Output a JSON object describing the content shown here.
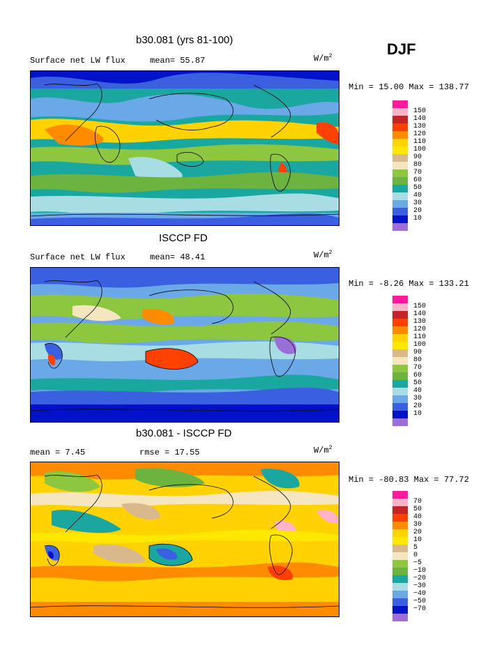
{
  "season": "DJF",
  "unit_text": "W/m",
  "unit_sup": "2",
  "panels": [
    {
      "title": "b30.081 (yrs 81-100)",
      "left_label": "Surface net LW flux",
      "mid_label": "mean=  55.87",
      "minmax": "Min =  15.00 Max = 138.77",
      "legend_labels": [
        "150",
        "140",
        "130",
        "120",
        "110",
        "100",
        "90",
        "80",
        "70",
        "60",
        "50",
        "40",
        "30",
        "20",
        "10"
      ],
      "style": "model"
    },
    {
      "title": "ISCCP FD",
      "left_label": "Surface net LW flux",
      "mid_label": "mean=  48.41",
      "minmax": "Min =  -8.26 Max = 133.21",
      "legend_labels": [
        "150",
        "140",
        "130",
        "120",
        "110",
        "100",
        "90",
        "80",
        "70",
        "60",
        "50",
        "40",
        "30",
        "20",
        "10"
      ],
      "style": "obs"
    },
    {
      "title": "b30.081 - ISCCP FD",
      "left_label": "mean =   7.45",
      "mid_label": "rmse =  17.55",
      "minmax": "Min = -80.83 Max =  77.72",
      "legend_labels": [
        "70",
        "50",
        "40",
        "30",
        "20",
        "10",
        "5",
        "0",
        "−5",
        "−10",
        "−20",
        "−30",
        "−40",
        "−50",
        "−70"
      ],
      "style": "diff"
    }
  ],
  "colors": {
    "scale": [
      "#ff1a9c",
      "#ffb3c8",
      "#c42424",
      "#ff4000",
      "#ff8c00",
      "#ffd200",
      "#ffe800",
      "#d9b88c",
      "#f5e6c0",
      "#8dc63f",
      "#6db33f",
      "#1aa7a0",
      "#a8dde3",
      "#6aa8e8",
      "#3a5fe0",
      "#0012c8",
      "#9b6fd8"
    ]
  }
}
